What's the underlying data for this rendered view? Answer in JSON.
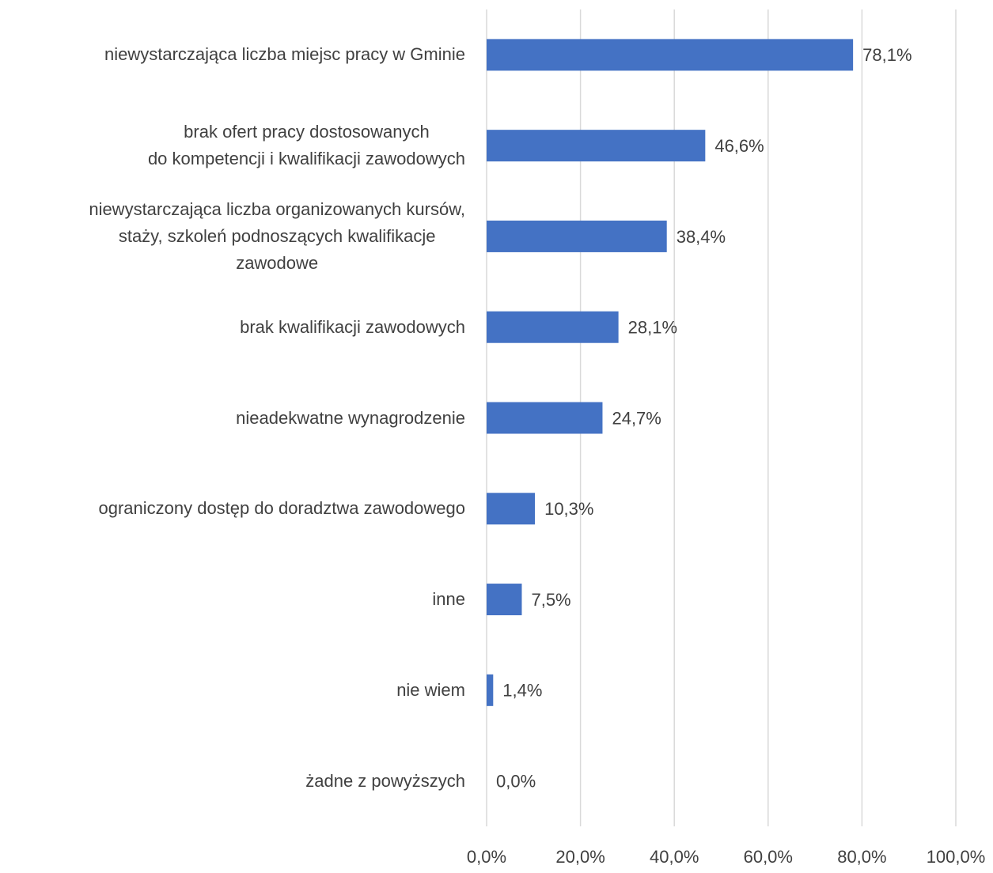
{
  "chart_data": {
    "type": "bar",
    "orientation": "horizontal",
    "categories": [
      "niewystarczająca liczba miejsc pracy w Gminie",
      "brak ofert pracy dostosowanych\ndo kompetencji i kwalifikacji zawodowych",
      "niewystarczająca liczba organizowanych kursów,\nstaży, szkoleń podnoszących kwalifikacje\nzawodowe",
      "brak kwalifikacji zawodowych",
      "nieadekwatne wynagrodzenie",
      "ograniczony dostęp do doradztwa zawodowego",
      "inne",
      "nie wiem",
      "żadne z powyższych"
    ],
    "values": [
      78.1,
      46.6,
      38.4,
      28.1,
      24.7,
      10.3,
      7.5,
      1.4,
      0.0
    ],
    "value_labels": [
      "78,1%",
      "46,6%",
      "38,4%",
      "28,1%",
      "24,7%",
      "10,3%",
      "7,5%",
      "1,4%",
      "0,0%"
    ],
    "color": "#4472c4",
    "xlim": [
      0,
      100
    ],
    "xticks": [
      {
        "value": 0,
        "label": "0,0%"
      },
      {
        "value": 20,
        "label": "20,0%"
      },
      {
        "value": 40,
        "label": "40,0%"
      },
      {
        "value": 60,
        "label": "60,0%"
      },
      {
        "value": 80,
        "label": "80,0%"
      },
      {
        "value": 100,
        "label": "100,0%"
      }
    ],
    "grid": true
  }
}
